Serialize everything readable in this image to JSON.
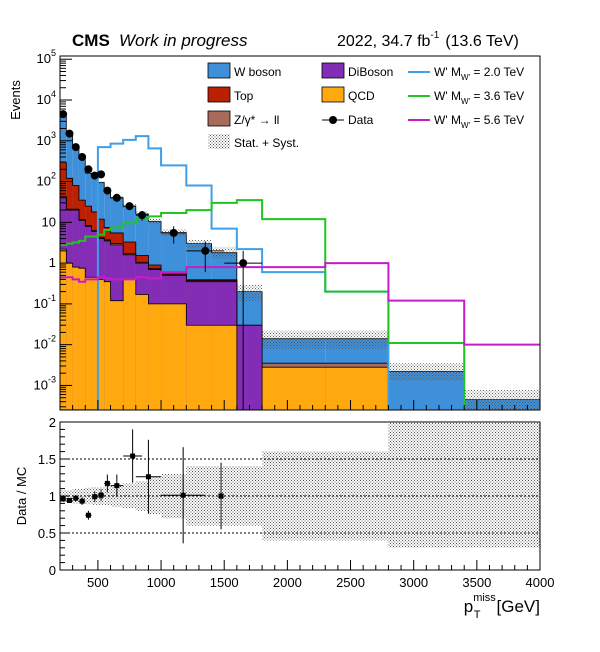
{
  "header": {
    "experiment": "CMS",
    "status": "Work in progress",
    "lumi_text": "2022, 34.7 fb",
    "lumi_exp": "-1",
    "energy": "(13.6 TeV)"
  },
  "chart_data": {
    "type": "bar",
    "title": "",
    "xlabel": "p_T^miss [GeV]",
    "xlabel_main": "p",
    "xlabel_sub": "T",
    "xlabel_sup": "miss",
    "xlabel_unit": "[GeV]",
    "ylabel": "Events",
    "ylabel_ratio": "Data / MC",
    "xlim": [
      200,
      4000
    ],
    "ylim_log": [
      0.00025,
      120000
    ],
    "ratio_ylim": [
      0,
      2
    ],
    "x_ticks": [
      500,
      1000,
      1500,
      2000,
      2500,
      3000,
      3500,
      4000
    ],
    "y_ticks": [
      {
        "value": 100000,
        "base": "10",
        "exp": "5"
      },
      {
        "value": 10000,
        "base": "10",
        "exp": "4"
      },
      {
        "value": 1000,
        "base": "10",
        "exp": "3"
      },
      {
        "value": 100,
        "base": "10",
        "exp": "2"
      },
      {
        "value": 10,
        "base": "10",
        "exp": ""
      },
      {
        "value": 1,
        "base": "1",
        "exp": ""
      },
      {
        "value": 0.1,
        "base": "10",
        "exp": "-1"
      },
      {
        "value": 0.01,
        "base": "10",
        "exp": "-2"
      },
      {
        "value": 0.001,
        "base": "10",
        "exp": "-3"
      }
    ],
    "ratio_ticks": [
      {
        "value": 0,
        "label": "0"
      },
      {
        "value": 0.5,
        "label": "0.5"
      },
      {
        "value": 1,
        "label": "1"
      },
      {
        "value": 1.5,
        "label": "1.5"
      },
      {
        "value": 2,
        "label": "2"
      }
    ],
    "bin_edges": [
      200,
      250,
      300,
      350,
      400,
      450,
      500,
      550,
      600,
      700,
      800,
      900,
      1000,
      1200,
      1400,
      1600,
      1800,
      2300,
      2800,
      3400,
      4000
    ],
    "legend": [
      {
        "key": "wboson",
        "label": "W boson",
        "kind": "fill",
        "color": "#3f90da"
      },
      {
        "key": "diboson",
        "label": "DiBoson",
        "kind": "fill",
        "color": "#832db6"
      },
      {
        "key": "wp2",
        "label": "W' M",
        "sub": "W'",
        "suffix": " = 2.0 TeV",
        "kind": "line",
        "color": "#3f9fe8"
      },
      {
        "key": "top",
        "label": "Top",
        "kind": "fill",
        "color": "#bd1f01"
      },
      {
        "key": "qcd",
        "label": "QCD",
        "kind": "fill",
        "color": "#ffa90e"
      },
      {
        "key": "wp36",
        "label": "W' M",
        "sub": "W'",
        "suffix": " = 3.6 TeV",
        "kind": "line",
        "color": "#22c422"
      },
      {
        "key": "dy",
        "label": "Z/γ* → ll",
        "kind": "fill",
        "color": "#a96b59"
      },
      {
        "key": "data",
        "label": "Data",
        "kind": "marker",
        "color": "#000000"
      },
      {
        "key": "wp56",
        "label": "W' M",
        "sub": "W'",
        "suffix": " = 5.6 TeV",
        "kind": "line",
        "color": "#c81cc8"
      },
      {
        "key": "unc",
        "label": "Stat. + Syst.",
        "kind": "hatch",
        "color": "#777777"
      }
    ],
    "stack_order": [
      "qcd",
      "diboson",
      "dy",
      "top",
      "wboson"
    ],
    "stack_cumulative_tops": {
      "qcd": [
        2.2,
        1.0,
        0.8,
        0.75,
        0.45,
        0.45,
        0.4,
        0.35,
        0.12,
        0.4,
        0.17,
        0.1,
        0.1,
        0.03,
        0.03,
        0.00025,
        0.0028,
        0.0028,
        0.00025,
        0.00025
      ],
      "diboson": [
        40,
        20,
        20,
        11,
        8,
        6,
        4,
        3.5,
        2.8,
        1.6,
        1.0,
        0.7,
        0.5,
        0.35,
        0.35,
        0.03,
        0.0028,
        0.0028,
        0.00025,
        0.00025
      ],
      "dy": [
        43,
        21,
        21,
        11.6,
        8.4,
        6.3,
        4.2,
        3.7,
        3.0,
        1.7,
        1.05,
        0.73,
        0.52,
        0.37,
        0.37,
        0.03,
        0.0035,
        0.0035,
        0.00025,
        0.00025
      ],
      "top": [
        300,
        120,
        80,
        35,
        25,
        18,
        12,
        7.5,
        5.5,
        3.3,
        1.55,
        0.9,
        0.58,
        0.39,
        0.39,
        0.03,
        0.0035,
        0.0035,
        0.00025,
        0.00025
      ],
      "wboson": [
        4500,
        1600,
        700,
        380,
        160,
        150,
        95,
        60,
        40,
        25,
        16,
        10.5,
        5.6,
        3.0,
        1.8,
        0.2,
        0.014,
        0.014,
        0.0022,
        0.00045
      ]
    },
    "unc_band": {
      "lo": [
        4200,
        1500,
        650,
        350,
        150,
        140,
        88,
        55,
        36,
        22,
        14,
        9,
        4.6,
        2.3,
        1.3,
        0.12,
        0.008,
        0.008,
        0.0013,
        0.00025
      ],
      "hi": [
        4800,
        1700,
        760,
        410,
        175,
        162,
        103,
        66,
        44,
        28,
        18.5,
        12.5,
        6.8,
        3.8,
        2.5,
        0.3,
        0.022,
        0.022,
        0.0035,
        0.0008
      ]
    },
    "signals": [
      {
        "key": "wp2",
        "name": "W' M_W' = 2.0 TeV",
        "color": "#3f9fe8",
        "values": [
          0.00025,
          0.00025,
          0.00025,
          0.00025,
          0.00025,
          0.00025,
          700,
          700,
          850,
          1050,
          1300,
          650,
          250,
          80,
          7,
          2.2,
          0.6,
          0.2,
          0.00025,
          0.00025
        ]
      },
      {
        "key": "wp36",
        "name": "W' M_W' = 3.6 TeV",
        "color": "#22c422",
        "values": [
          2.8,
          3.0,
          3.2,
          3.5,
          4.5,
          4.5,
          5,
          6.5,
          7.5,
          9.5,
          12,
          14,
          17,
          20,
          30,
          35,
          12,
          0.2,
          0.011,
          0.00025
        ]
      },
      {
        "key": "wp56",
        "name": "W' M_W' = 5.6 TeV",
        "color": "#c81cc8",
        "values": [
          0.45,
          0.45,
          0.4,
          0.35,
          0.4,
          0.4,
          0.45,
          0.42,
          0.4,
          0.4,
          0.45,
          0.42,
          0.6,
          0.8,
          0.8,
          0.8,
          0.8,
          1.0,
          0.12,
          0.01
        ]
      }
    ],
    "data_points": [
      {
        "x": 225,
        "y": 4500,
        "xerr": 25,
        "yerr": 70
      },
      {
        "x": 275,
        "y": 1500,
        "xerr": 25,
        "yerr": 40
      },
      {
        "x": 325,
        "y": 700,
        "xerr": 25,
        "yerr": 27
      },
      {
        "x": 375,
        "y": 400,
        "xerr": 25,
        "yerr": 20
      },
      {
        "x": 425,
        "y": 200,
        "xerr": 25,
        "yerr": 14
      },
      {
        "x": 475,
        "y": 140,
        "xerr": 25,
        "yerr": 12
      },
      {
        "x": 525,
        "y": 150,
        "xerr": 25,
        "yerr": 12
      },
      {
        "x": 575,
        "y": 60,
        "xerr": 25,
        "yerr": 8
      },
      {
        "x": 650,
        "y": 40,
        "xerr": 50,
        "yerr": 6.5
      },
      {
        "x": 750,
        "y": 25,
        "xerr": 50,
        "yerr": 5
      },
      {
        "x": 850,
        "y": 15,
        "xerr": 50,
        "yerr": 4
      },
      {
        "x": 1100,
        "y": 5.5,
        "xerr": 100,
        "yerr": 2.5
      },
      {
        "x": 1350,
        "y": 2.0,
        "xerr": 150,
        "yerr": 1.4
      },
      {
        "x": 1650,
        "y": 1.0,
        "xerr": 150,
        "yerr": 1.0
      }
    ],
    "ratio_points": [
      {
        "x": 225,
        "y": 0.96,
        "xerr": 25,
        "yerr": 0.02
      },
      {
        "x": 275,
        "y": 0.94,
        "xerr": 25,
        "yerr": 0.03
      },
      {
        "x": 325,
        "y": 0.97,
        "xerr": 25,
        "yerr": 0.04
      },
      {
        "x": 375,
        "y": 0.93,
        "xerr": 25,
        "yerr": 0.05
      },
      {
        "x": 425,
        "y": 0.74,
        "xerr": 25,
        "yerr": 0.06
      },
      {
        "x": 475,
        "y": 0.99,
        "xerr": 25,
        "yerr": 0.07
      },
      {
        "x": 525,
        "y": 1.01,
        "xerr": 25,
        "yerr": 0.08
      },
      {
        "x": 575,
        "y": 1.17,
        "xerr": 25,
        "yerr": 0.12
      },
      {
        "x": 650,
        "y": 1.14,
        "xerr": 50,
        "yerr": 0.15
      },
      {
        "x": 775,
        "y": 1.54,
        "xerr": 75,
        "yerr": 0.36
      },
      {
        "x": 900,
        "y": 1.26,
        "xerr": 100,
        "yerr": 0.5
      },
      {
        "x": 1175,
        "y": 1.01,
        "xerr": 175,
        "yerr": 0.65
      },
      {
        "x": 1475,
        "y": 1.0,
        "xerr": 0,
        "yerr": 0.45
      }
    ],
    "ratio_band": {
      "lo": [
        0.92,
        0.92,
        0.9,
        0.9,
        0.89,
        0.88,
        0.88,
        0.87,
        0.85,
        0.83,
        0.8,
        0.75,
        0.7,
        0.6,
        0.6,
        0.6,
        0.4,
        0.4,
        0.3,
        0.3
      ],
      "hi": [
        1.08,
        1.08,
        1.1,
        1.1,
        1.11,
        1.12,
        1.12,
        1.13,
        1.15,
        1.17,
        1.2,
        1.25,
        1.3,
        1.4,
        1.4,
        1.4,
        1.6,
        1.6,
        2.0,
        2.0
      ]
    }
  }
}
